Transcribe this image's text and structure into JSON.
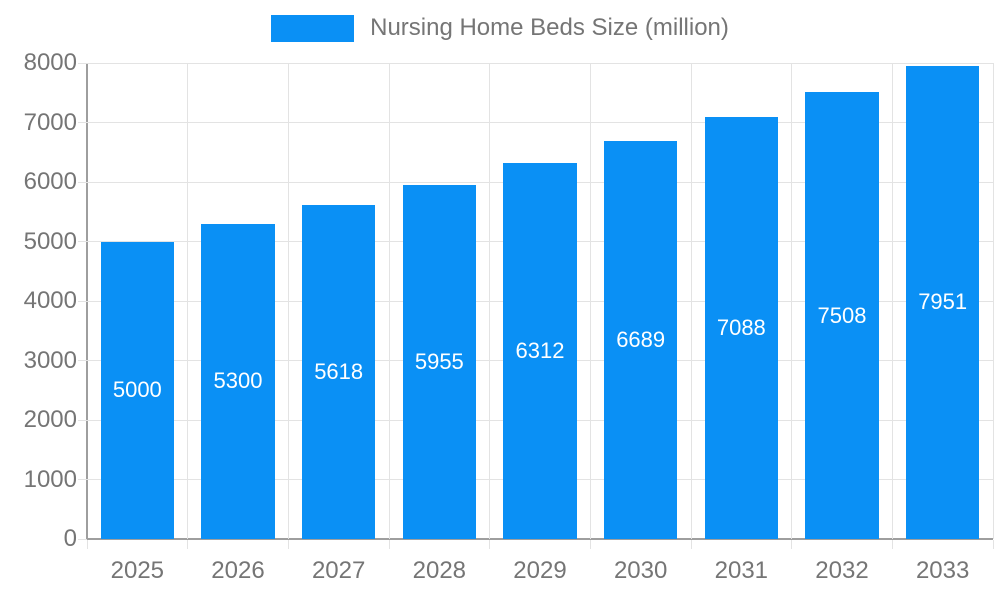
{
  "chart_data": {
    "type": "bar",
    "title": "Nursing Home Beds Size (million)",
    "categories": [
      "2025",
      "2026",
      "2027",
      "2028",
      "2029",
      "2030",
      "2031",
      "2032",
      "2033"
    ],
    "values": [
      5000,
      5300,
      5618,
      5955,
      6312,
      6689,
      7088,
      7508,
      7951
    ],
    "xlabel": "",
    "ylabel": "",
    "ylim": [
      0,
      8000
    ],
    "ytick_step": 1000,
    "grid": true,
    "legend_position": "top",
    "bar_color": "#0a90f5",
    "value_label_color": "#ffffff",
    "axis_line_color": "#9e9e9e",
    "grid_color": "#e3e3e3",
    "tick_label_color": "#757575",
    "legend_text_color": "#757575"
  }
}
